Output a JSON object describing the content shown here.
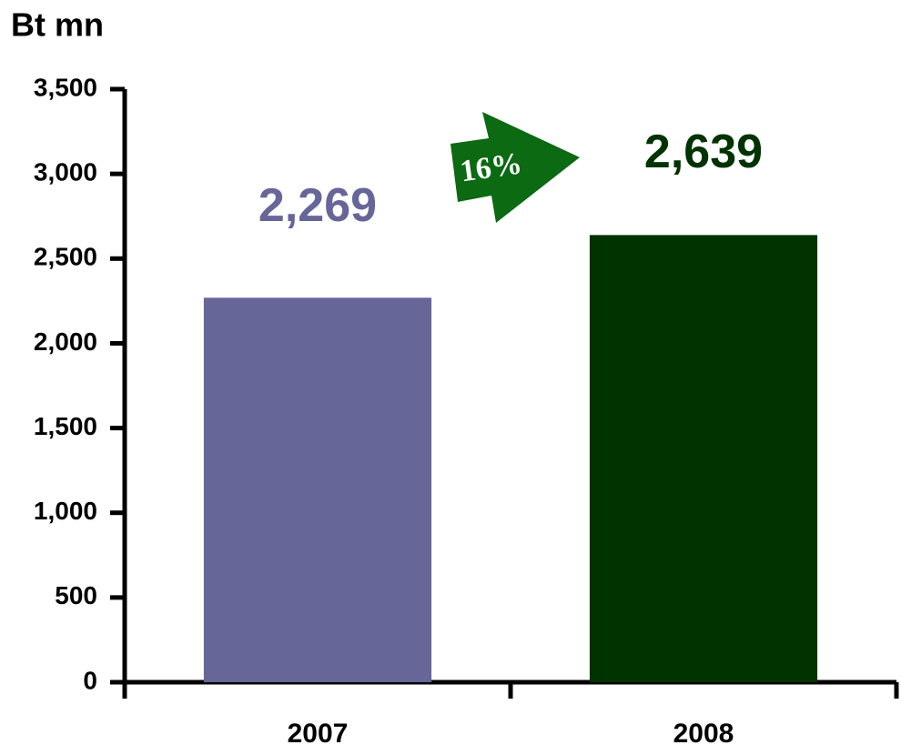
{
  "chart_data": {
    "type": "bar",
    "y_label": "Bt mn",
    "categories": [
      "2007",
      "2008"
    ],
    "values": [
      2269,
      2639
    ],
    "value_labels": [
      "2,269",
      "2,639"
    ],
    "colors": [
      "#666699",
      "#003300"
    ],
    "ylim": [
      0,
      3500
    ],
    "yticks": [
      0,
      500,
      {
        "value": 1000,
        "label": "1,000"
      },
      {
        "value": 1500,
        "label": "1,500"
      },
      {
        "value": 2000,
        "label": "2,000"
      },
      {
        "value": 2500,
        "label": "2,500"
      },
      {
        "value": 3000,
        "label": "3,000"
      },
      {
        "value": 3500,
        "label": "3,500"
      }
    ],
    "annotations": [
      {
        "text": "16%"
      }
    ]
  }
}
